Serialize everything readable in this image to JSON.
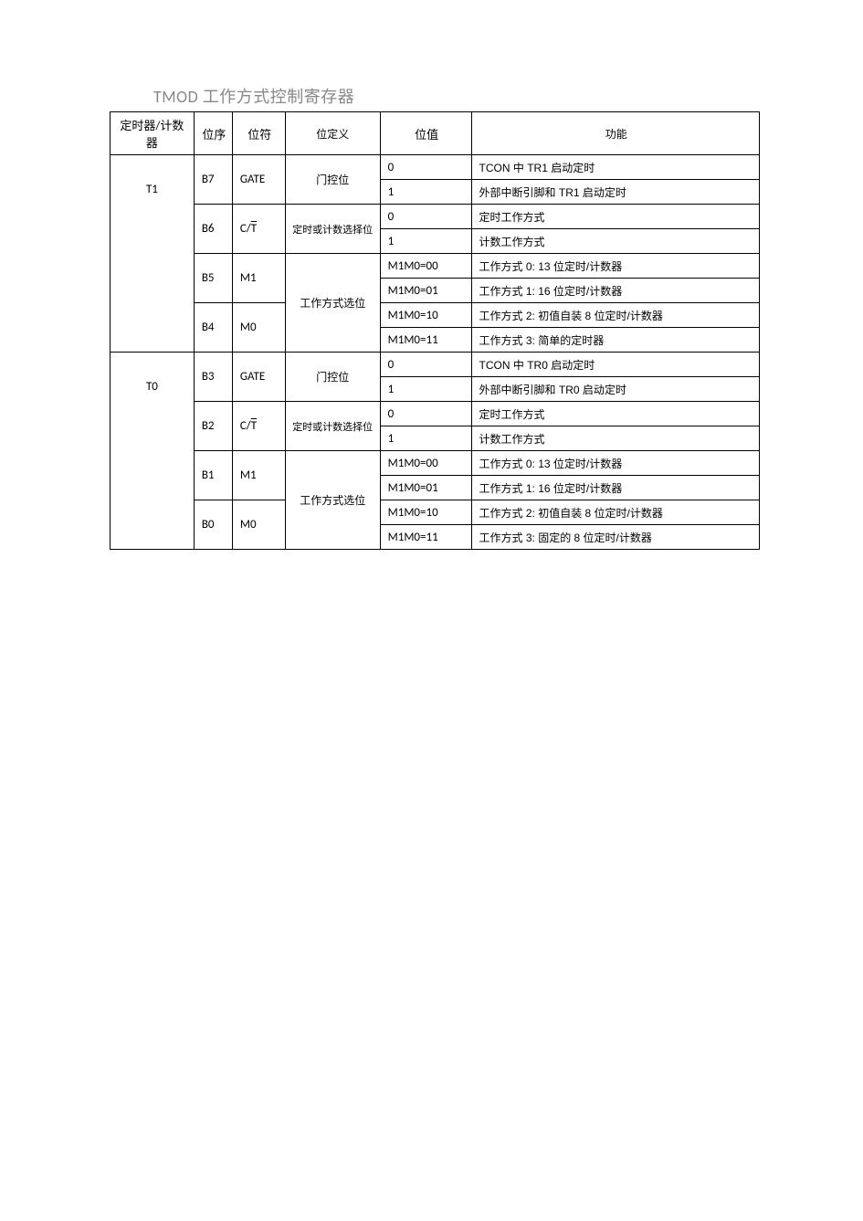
{
  "title": "TMOD 工作方式控制寄存器",
  "headers": {
    "timer": "定时器/计数器",
    "bitseq": "位序",
    "bitsym": "位符",
    "bitdef": "位定义",
    "bitval": "位值",
    "func": "功能"
  },
  "groups": [
    {
      "timer": "T1",
      "bits": [
        {
          "seq": "B7",
          "sym": "GATE",
          "def": "门控位",
          "vals": [
            {
              "val": "0",
              "func": "TCON 中 TR1 启动定时"
            },
            {
              "val": "1",
              "func": "外部中断引脚和 TR1 启动定时"
            }
          ]
        },
        {
          "seq": "B6",
          "sym_html": "C/<span class=\"overline\">T</span>",
          "def": "定时或计数选择位",
          "def_small": true,
          "vals": [
            {
              "val": "0",
              "func": "定时工作方式"
            },
            {
              "val": "1",
              "func": "计数工作方式"
            }
          ]
        },
        {
          "seq": "B5",
          "sym": "M1",
          "def": "工作方式选位",
          "def_rowspan": 4,
          "vals": [
            {
              "val": "M1M0=00",
              "func": "工作方式 0: 13 位定时/计数器"
            },
            {
              "val": "M1M0=01",
              "func": "工作方式 1: 16 位定时/计数器"
            }
          ]
        },
        {
          "seq": "B4",
          "sym": "M0",
          "vals": [
            {
              "val": "M1M0=10",
              "func": "工作方式 2:  初值自装 8 位定时/计数器"
            },
            {
              "val": "M1M0=11",
              "func": "工作方式 3:  简单的定时器"
            }
          ]
        }
      ]
    },
    {
      "timer": "T0",
      "bits": [
        {
          "seq": "B3",
          "sym": "GATE",
          "def": "门控位",
          "vals": [
            {
              "val": "0",
              "func": "TCON 中 TR0 启动定时"
            },
            {
              "val": "1",
              "func": "外部中断引脚和 TR0 启动定时"
            }
          ]
        },
        {
          "seq": "B2",
          "sym_html": "C/<span class=\"overline\">T</span>",
          "def": "定时或计数选择位",
          "def_small": true,
          "vals": [
            {
              "val": "0",
              "func": "定时工作方式"
            },
            {
              "val": "1",
              "func": "计数工作方式"
            }
          ]
        },
        {
          "seq": "B1",
          "sym": "M1",
          "def": "工作方式选位",
          "def_rowspan": 4,
          "vals": [
            {
              "val": "M1M0=00",
              "func": "工作方式 0: 13 位定时/计数器"
            },
            {
              "val": "M1M0=01",
              "func": "工作方式 1: 16 位定时/计数器"
            }
          ]
        },
        {
          "seq": "B0",
          "sym": "M0",
          "vals": [
            {
              "val": "M1M0=10",
              "func": "工作方式 2:  初值自装 8 位定时/计数器"
            },
            {
              "val": "M1M0=11",
              "func": "工作方式 3:  固定的 8 位定时/计数器"
            }
          ]
        }
      ]
    }
  ]
}
